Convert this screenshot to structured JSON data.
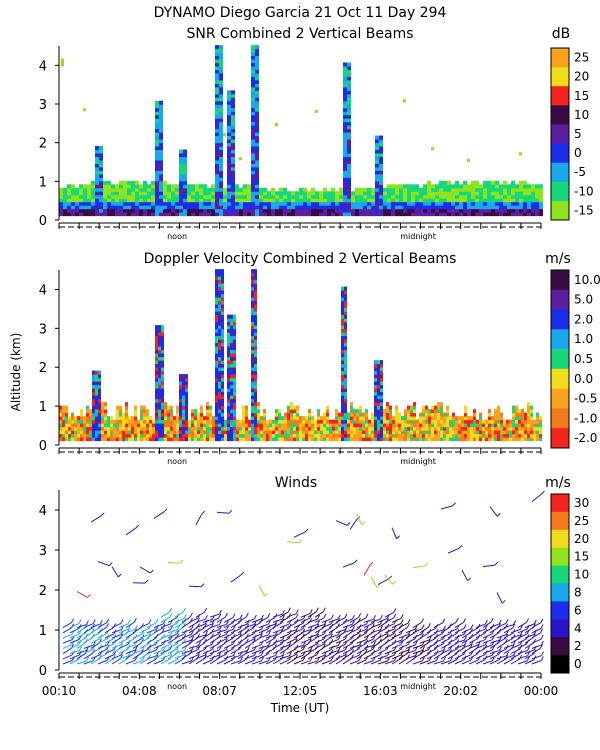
{
  "figure": {
    "title_line1": "DYNAMO Diego Garcia  21 Oct 11 Day 294",
    "shared_ylabel": "Altitude (km)",
    "xlabel": "Time (UT)",
    "noon_label": "noon",
    "midnight_label": "midnight"
  },
  "chart_data": [
    {
      "type": "heatmap",
      "title": "SNR Combined 2 Vertical Beams",
      "unit": "dB",
      "ylim": [
        0,
        4.5
      ],
      "yticks": [
        0,
        1,
        2,
        3,
        4
      ],
      "colorbar": {
        "labels": [
          "25",
          "20",
          "15",
          "10",
          "5",
          "0",
          "-5",
          "-10",
          "-15"
        ],
        "colors": [
          "#f9a21e",
          "#f3dc1c",
          "#f2241c",
          "#3a0b42",
          "#5b1fa0",
          "#1b2cea",
          "#19a8ec",
          "#17d77a",
          "#8ee21e"
        ]
      }
    },
    {
      "type": "heatmap",
      "title": "Doppler Velocity Combined 2 Vertical Beams",
      "unit": "m/s",
      "ylim": [
        0,
        4.5
      ],
      "yticks": [
        0,
        1,
        2,
        3,
        4
      ],
      "colorbar": {
        "labels": [
          "10.0",
          "5.0",
          "2.0",
          "1.0",
          "0.5",
          "0.0",
          "-0.5",
          "-1.0",
          "-2.0"
        ],
        "colors": [
          "#3a0b42",
          "#5b1fa0",
          "#1b2cea",
          "#19a8ec",
          "#17d77a",
          "#f3dc1c",
          "#f9a21e",
          "#f57a1c",
          "#f2241c"
        ]
      }
    },
    {
      "type": "scatter",
      "title": "Winds",
      "unit": "m/s",
      "ylim": [
        0,
        4.5
      ],
      "yticks": [
        0,
        1,
        2,
        3,
        4
      ],
      "xtick_labels": [
        "00:10",
        "04:08",
        "08:07",
        "12:05",
        "16:03",
        "20:02",
        "00:00"
      ],
      "colorbar": {
        "labels": [
          "30",
          "25",
          "20",
          "15",
          "10",
          "8",
          "6",
          "4",
          "2",
          "0"
        ],
        "colors": [
          "#f2241c",
          "#f57a1c",
          "#f3dc1c",
          "#8ee21e",
          "#17d77a",
          "#19a8ec",
          "#1b2cea",
          "#2a14c8",
          "#3a0b42",
          "#000000"
        ]
      }
    }
  ]
}
